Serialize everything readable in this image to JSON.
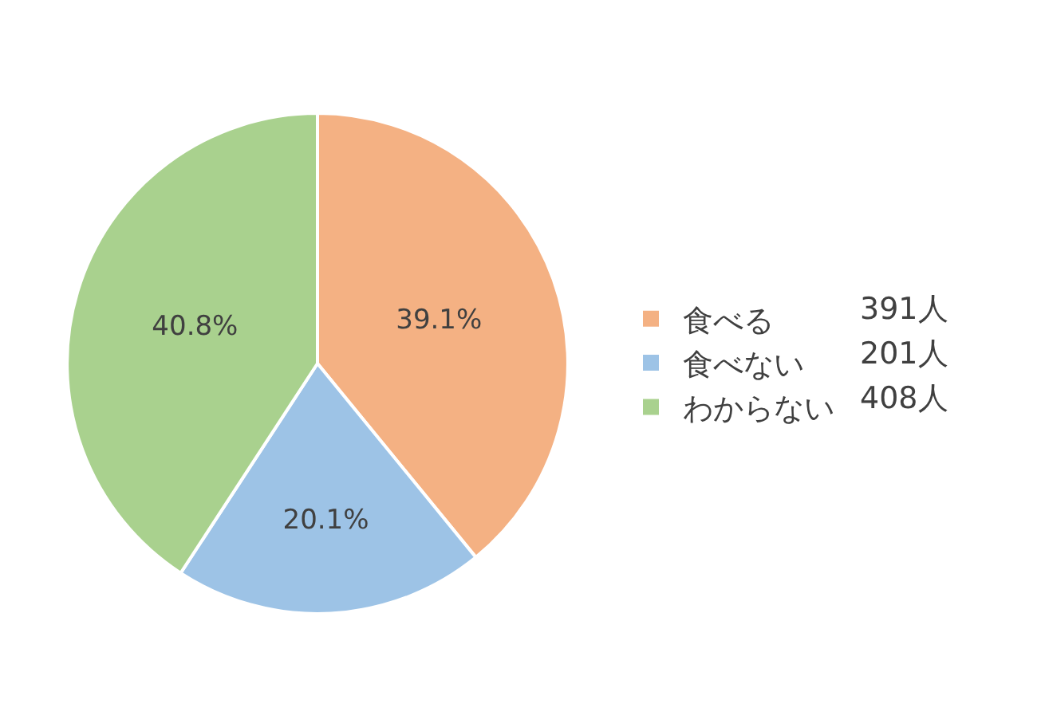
{
  "chart_data": {
    "type": "pie",
    "categories": [
      "食べる",
      "食べない",
      "わからない"
    ],
    "values": [
      39.1,
      20.1,
      40.8
    ],
    "value_labels": [
      "39.1%",
      "20.1%",
      "40.8%"
    ],
    "colors": [
      "#f4b183",
      "#9dc3e6",
      "#a9d18e"
    ],
    "annotations": [
      "391人",
      "201人",
      "408人"
    ],
    "legend": "right"
  }
}
